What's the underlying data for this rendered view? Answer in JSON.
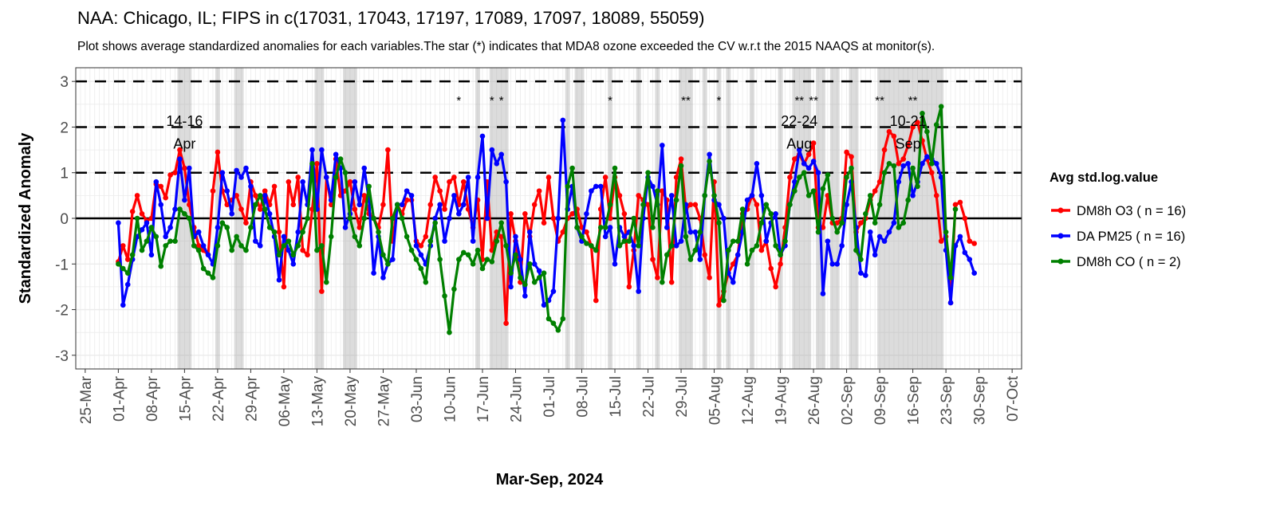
{
  "chart_data": {
    "type": "line",
    "title": "NAA: Chicago, IL; FIPS in c(17031, 17043, 17197, 17089, 17097, 18089, 55059)",
    "subtitle": "Plot shows average standardized anomalies for each variables.The star (*) indicates that MDA8 ozone exceeded the CV w.r.t the 2015 NAAQS at monitor(s).",
    "xlabel": "Mar-Sep, 2024",
    "ylabel": "Standardized Anomaly",
    "ylim": [
      -3.3,
      3.3
    ],
    "yticks": [
      "3",
      "2",
      "1",
      "0",
      "-1",
      "-2",
      "-3"
    ],
    "ytick_values": [
      3,
      2,
      1,
      0,
      -1,
      -2,
      -3
    ],
    "xlim_dates": [
      "2024-03-23",
      "2024-10-09"
    ],
    "xticks": [
      "25-Mar",
      "01-Apr",
      "08-Apr",
      "15-Apr",
      "22-Apr",
      "29-Apr",
      "06-May",
      "13-May",
      "20-May",
      "27-May",
      "03-Jun",
      "10-Jun",
      "17-Jun",
      "24-Jun",
      "01-Jul",
      "08-Jul",
      "15-Jul",
      "22-Jul",
      "29-Jul",
      "05-Aug",
      "12-Aug",
      "19-Aug",
      "26-Aug",
      "02-Sep",
      "09-Sep",
      "16-Sep",
      "23-Sep",
      "30-Sep",
      "07-Oct"
    ],
    "reference_lines": {
      "dashed": [
        1,
        2,
        3
      ],
      "solid": [
        0
      ]
    },
    "legend": {
      "title": "Avg std.log.value",
      "placement": "right"
    },
    "start_date": "2024-04-01",
    "series": [
      {
        "name": "DM8h O3 ( n = 16)",
        "color": "#ff0000",
        "values": [
          -0.95,
          -0.6,
          -0.9,
          0.15,
          0.5,
          0.1,
          -0.05,
          0.0,
          0.75,
          0.7,
          0.45,
          0.95,
          1.0,
          1.5,
          1.1,
          0.3,
          -0.2,
          -0.6,
          -0.7,
          -0.8,
          0.6,
          1.45,
          0.6,
          0.3,
          0.4,
          0.5,
          0.2,
          -0.1,
          0.8,
          0.5,
          0.2,
          0.6,
          0.3,
          0.7,
          -0.3,
          -1.5,
          0.8,
          0.3,
          0.9,
          -0.7,
          -0.8,
          0.2,
          1.2,
          -1.6,
          0.9,
          0.3,
          1.3,
          0.5,
          0.6,
          0.8,
          0.2,
          -0.2,
          0.5,
          0.1,
          0.0,
          -0.2,
          0.3,
          1.5,
          -0.5,
          0.3,
          0.1,
          0.4,
          0.4,
          -0.5,
          -0.6,
          -0.4,
          0.3,
          0.9,
          0.6,
          0.2,
          0.8,
          0.9,
          0.3,
          0.8,
          0.2,
          -0.2,
          0.4,
          -0.9,
          0.8,
          -0.7,
          -0.3,
          -0.4,
          -2.3,
          0.1,
          -0.5,
          -1.4,
          0.1,
          -0.4,
          0.3,
          0.6,
          -0.1,
          0.9,
          0.0,
          -0.5,
          -0.3,
          0.0,
          0.1,
          0.2,
          -0.2,
          -0.3,
          -0.6,
          -1.8,
          0.2,
          0.9,
          0.0,
          0.9,
          0.5,
          0.1,
          -1.5,
          -0.7,
          0.5,
          0.4,
          0.3,
          -0.9,
          -1.3,
          0.6,
          0.4,
          -1.4,
          0.9,
          1.3,
          0.2,
          0.3,
          0.3,
          0.0,
          -0.8,
          -1.3,
          0.8,
          -1.9,
          -1.6,
          -1.2,
          -1.0,
          -0.8,
          0.1,
          0.2,
          0.5,
          0.3,
          -0.7,
          -0.5,
          -1.1,
          -1.5,
          -1.0,
          -0.2,
          0.9,
          1.3,
          1.4,
          1.2,
          1.4,
          1.65,
          -0.2,
          -0.2,
          0.5,
          -0.1,
          -0.1,
          0.0,
          1.45,
          1.35,
          -0.3,
          -0.1,
          0.0,
          0.4,
          0.6,
          0.8,
          1.5,
          1.9,
          1.8,
          1.2,
          1.3,
          1.6,
          2.0,
          2.1,
          1.7,
          1.3,
          1.0,
          0.5,
          -0.5,
          -0.4,
          -1.85,
          0.3,
          0.35,
          0.0,
          -0.5,
          -0.55
        ]
      },
      {
        "name": "DA PM25 ( n = 16)",
        "color": "#0000ff",
        "values": [
          -0.1,
          -1.9,
          -1.45,
          -0.9,
          -0.4,
          -0.25,
          -0.1,
          -0.8,
          0.8,
          0.3,
          -0.4,
          -0.2,
          0.2,
          1.3,
          0.4,
          1.1,
          -0.4,
          -0.3,
          -0.6,
          -0.8,
          -1.0,
          -0.2,
          1.0,
          0.6,
          0.1,
          1.05,
          0.9,
          1.1,
          0.7,
          -0.5,
          -0.6,
          0.5,
          0.1,
          -0.4,
          -1.35,
          -0.4,
          -0.7,
          -1.0,
          -0.3,
          0.8,
          0.3,
          1.5,
          0.2,
          1.5,
          0.9,
          0.4,
          1.4,
          1.1,
          -0.2,
          0.1,
          0.8,
          0.3,
          1.1,
          0.4,
          -1.2,
          -0.4,
          -1.3,
          -1.0,
          -0.9,
          0.3,
          0.3,
          0.6,
          0.5,
          -0.6,
          -0.8,
          -1.0,
          -0.6,
          0.0,
          0.3,
          -0.5,
          0.0,
          0.5,
          0.1,
          0.3,
          0.9,
          -0.5,
          0.9,
          1.8,
          0.0,
          1.5,
          1.2,
          1.4,
          0.8,
          -1.5,
          -0.4,
          -0.9,
          -1.7,
          -0.3,
          -1.0,
          -1.15,
          -1.9,
          -1.8,
          -1.6,
          0.0,
          2.15,
          0.2,
          0.7,
          -0.2,
          -0.5,
          0.1,
          0.6,
          0.7,
          0.7,
          -0.4,
          -0.2,
          -1.0,
          -0.2,
          -0.4,
          -0.3,
          -0.6,
          -1.6,
          0.0,
          0.9,
          0.7,
          0.3,
          1.6,
          -0.2,
          0.5,
          -0.6,
          -0.5,
          0.3,
          -0.3,
          -0.3,
          -0.9,
          0.5,
          1.4,
          0.4,
          0.3,
          0.0,
          -1.2,
          -1.4,
          -0.8,
          -0.3,
          0.4,
          0.5,
          1.2,
          0.5,
          -0.5,
          -0.1,
          0.1,
          -0.8,
          -0.6,
          0.3,
          0.8,
          1.5,
          1.2,
          1.1,
          1.25,
          1.0,
          -1.65,
          -0.5,
          -1.0,
          -1.0,
          -0.6,
          0.3,
          0.8,
          -0.2,
          -1.2,
          -1.25,
          -0.3,
          -0.8,
          -0.4,
          -0.5,
          -0.3,
          -0.1,
          0.8,
          1.15,
          1.2,
          0.5,
          0.8,
          1.2,
          1.35,
          1.3,
          1.2,
          0.9,
          -0.7,
          -1.85,
          -0.6,
          -0.4,
          -0.75,
          -0.9,
          -1.2
        ]
      },
      {
        "name": "DM8h CO ( n = 2)",
        "color": "#008000",
        "values": [
          -1.0,
          -1.1,
          -1.2,
          -0.8,
          0.0,
          -0.7,
          -0.5,
          -0.2,
          -0.4,
          -1.05,
          -0.6,
          -0.5,
          -0.5,
          0.2,
          0.1,
          0.0,
          -0.6,
          -0.7,
          -1.1,
          -1.2,
          -1.3,
          -0.6,
          -0.1,
          -0.2,
          -0.7,
          -0.4,
          -0.6,
          -0.7,
          -0.2,
          0.3,
          0.5,
          0.2,
          -0.2,
          -0.3,
          -0.8,
          -0.6,
          -0.5,
          -0.8,
          -0.6,
          -0.3,
          0.0,
          1.2,
          -0.7,
          -0.6,
          -1.4,
          -0.4,
          0.9,
          1.3,
          1.0,
          0.0,
          -0.4,
          -0.6,
          0.0,
          0.7,
          0.0,
          -0.3,
          -0.8,
          -1.0,
          0.0,
          0.3,
          0.0,
          -0.4,
          -0.7,
          -0.9,
          -1.1,
          -1.4,
          -0.5,
          -0.1,
          -0.9,
          -1.7,
          -2.5,
          -1.55,
          -0.9,
          -0.75,
          -0.8,
          -1.0,
          -0.7,
          -1.1,
          -0.9,
          -0.95,
          -0.5,
          -0.1,
          -0.6,
          -1.2,
          -0.8,
          -1.3,
          -1.45,
          -1.0,
          -1.4,
          -1.3,
          -1.2,
          -2.2,
          -2.3,
          -2.45,
          -2.2,
          0.7,
          1.1,
          -0.2,
          -0.4,
          -0.55,
          -0.6,
          -0.7,
          -0.2,
          -0.2,
          0.3,
          1.1,
          -0.6,
          -0.5,
          -0.5,
          0.0,
          -0.6,
          0.3,
          1.0,
          -0.2,
          0.6,
          -1.4,
          -0.8,
          -0.6,
          0.4,
          1.15,
          -0.4,
          -0.9,
          -0.7,
          -0.3,
          0.5,
          1.25,
          0.5,
          -0.1,
          -1.8,
          -0.7,
          -0.5,
          -0.5,
          0.2,
          -1.0,
          -0.7,
          -0.6,
          -0.1,
          0.3,
          0.1,
          -0.6,
          -0.8,
          -0.5,
          0.3,
          0.6,
          0.9,
          1.0,
          0.5,
          0.6,
          -0.3,
          0.65,
          0.95,
          0.0,
          -0.3,
          -0.1,
          0.9,
          1.1,
          -0.7,
          -0.9,
          0.1,
          0.5,
          -0.1,
          0.3,
          1.0,
          1.2,
          1.15,
          -0.2,
          -0.1,
          0.4,
          1.1,
          0.7,
          2.3,
          1.9,
          1.2,
          2.05,
          2.45,
          -0.3,
          -1.3,
          0.2
        ]
      }
    ],
    "shaded_periods": [
      [
        "2024-04-14",
        "2024-04-16"
      ],
      [
        "2024-04-22",
        "2024-04-22"
      ],
      [
        "2024-04-26",
        "2024-04-27"
      ],
      [
        "2024-05-13",
        "2024-05-14"
      ],
      [
        "2024-05-19",
        "2024-05-21"
      ],
      [
        "2024-06-16",
        "2024-06-16"
      ],
      [
        "2024-06-19",
        "2024-06-22"
      ],
      [
        "2024-07-05",
        "2024-07-05"
      ],
      [
        "2024-07-07",
        "2024-07-08"
      ],
      [
        "2024-07-14",
        "2024-07-14"
      ],
      [
        "2024-07-20",
        "2024-07-20"
      ],
      [
        "2024-07-24",
        "2024-07-24"
      ],
      [
        "2024-07-29",
        "2024-07-31"
      ],
      [
        "2024-08-03",
        "2024-08-03"
      ],
      [
        "2024-08-06",
        "2024-08-06"
      ],
      [
        "2024-08-08",
        "2024-08-08"
      ],
      [
        "2024-08-13",
        "2024-08-13"
      ],
      [
        "2024-08-19",
        "2024-08-19"
      ],
      [
        "2024-08-22",
        "2024-08-25"
      ],
      [
        "2024-08-27",
        "2024-08-28"
      ],
      [
        "2024-08-30",
        "2024-08-31"
      ],
      [
        "2024-09-03",
        "2024-09-04"
      ],
      [
        "2024-09-09",
        "2024-09-22"
      ]
    ],
    "stars": [
      {
        "date": "2024-06-12",
        "label": "*"
      },
      {
        "date": "2024-06-19",
        "label": "*"
      },
      {
        "date": "2024-06-21",
        "label": "*"
      },
      {
        "date": "2024-07-14",
        "label": "*"
      },
      {
        "date": "2024-07-30",
        "label": "**"
      },
      {
        "date": "2024-08-06",
        "label": "*"
      },
      {
        "date": "2024-08-23",
        "label": "**"
      },
      {
        "date": "2024-08-26",
        "label": "**"
      },
      {
        "date": "2024-09-09",
        "label": "**"
      },
      {
        "date": "2024-09-16",
        "label": "**"
      }
    ],
    "annotations": [
      {
        "date": "2024-04-15",
        "line1": "14-16",
        "line2": "Apr"
      },
      {
        "date": "2024-08-23",
        "line1": "22-24",
        "line2": "Aug"
      },
      {
        "date": "2024-09-15",
        "line1": "10-21",
        "line2": "Sep"
      }
    ]
  }
}
